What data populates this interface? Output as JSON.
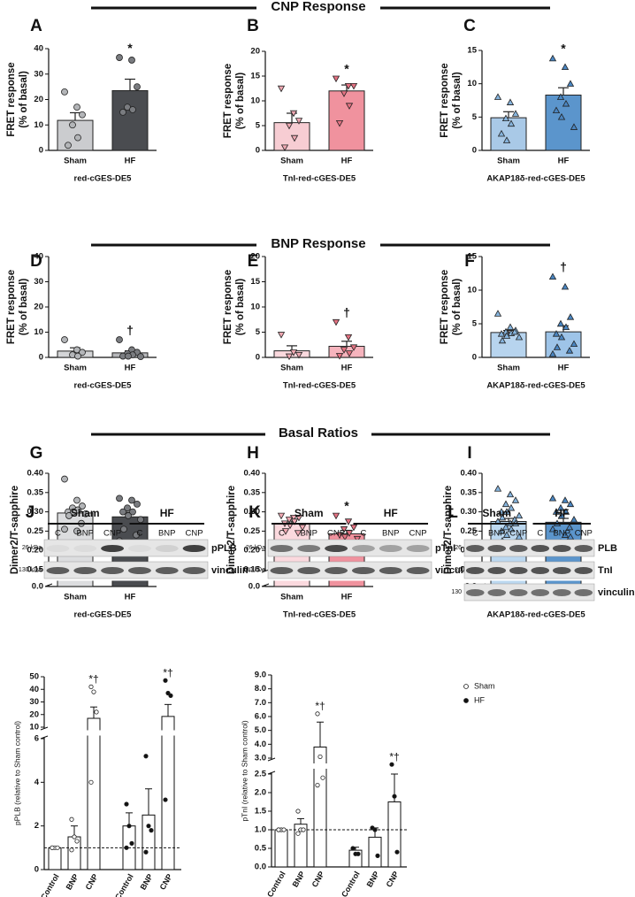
{
  "sections": [
    "CNP Response",
    "BNP Response",
    "Basal Ratios"
  ],
  "chart_data": [
    {
      "type": "bar",
      "panel": "A",
      "ylabel": [
        "FRET response",
        "(% of basal)"
      ],
      "xlabel": "red-cGES-DE5",
      "categories": [
        "Sham",
        "HF"
      ],
      "values": [
        11.8,
        23.5
      ],
      "errors": [
        3,
        4.5
      ],
      "points": [
        [
          23,
          17,
          14,
          10,
          5,
          2
        ],
        [
          36.5,
          35.5,
          25,
          17,
          16,
          15
        ]
      ],
      "annotations": [
        null,
        "*"
      ],
      "colors": [
        "#cbcccf",
        "#4a4c50"
      ],
      "point_colors": [
        "#b3b5b8",
        "#7a7c80"
      ],
      "marker": "circle",
      "ylim": [
        0,
        40
      ],
      "yticks": [
        0,
        10,
        20,
        30,
        40
      ]
    },
    {
      "type": "bar",
      "panel": "B",
      "ylabel": [
        "FRET response",
        "(% of basal)"
      ],
      "xlabel": "TnI-red-cGES-DE5",
      "categories": [
        "Sham",
        "HF"
      ],
      "values": [
        5.6,
        12.0
      ],
      "errors": [
        1.9,
        1.2
      ],
      "points": [
        [
          12.5,
          7.5,
          6,
          5,
          2.5,
          0.6
        ],
        [
          14.5,
          13,
          13,
          11.5,
          9,
          5.5
        ]
      ],
      "annotations": [
        null,
        "*"
      ],
      "colors": [
        "#f7cdd3",
        "#f0929e"
      ],
      "point_colors": [
        "#efa8b2",
        "#e47282"
      ],
      "marker": "triangle-down",
      "ylim": [
        0,
        20
      ],
      "yticks": [
        0,
        5,
        10,
        15,
        20
      ]
    },
    {
      "type": "bar",
      "panel": "C",
      "ylabel": [
        "FRET response",
        "(% of basal)"
      ],
      "xlabel": "AKAP18δ-red-cGES-DE5",
      "categories": [
        "Sham",
        "HF"
      ],
      "values": [
        4.9,
        8.3
      ],
      "errors": [
        0.9,
        1.1
      ],
      "points": [
        [
          8,
          7.2,
          5.5,
          4.8,
          4,
          2.5,
          1.5
        ],
        [
          13.8,
          12.5,
          10,
          8,
          7,
          6,
          5,
          3.5
        ]
      ],
      "annotations": [
        null,
        "*"
      ],
      "colors": [
        "#a9c9e7",
        "#5b95cc"
      ],
      "point_colors": [
        "#86b4dd",
        "#4a86c2"
      ],
      "marker": "triangle-up",
      "ylim": [
        0,
        15
      ],
      "yticks": [
        0,
        5,
        10,
        15
      ]
    },
    {
      "type": "bar",
      "panel": "D",
      "ylabel": [
        "FRET response",
        "(% of basal)"
      ],
      "xlabel": "red-cGES-DE5",
      "categories": [
        "Sham",
        "HF"
      ],
      "values": [
        2.5,
        1.8
      ],
      "errors": [
        1.3,
        0.8
      ],
      "points": [
        [
          7,
          3,
          2,
          1,
          0.5
        ],
        [
          7,
          3,
          2,
          1.5,
          1,
          0.5,
          0.5,
          0.3
        ]
      ],
      "annotations": [
        null,
        "†"
      ],
      "colors": [
        "#d4d5d7",
        "#b7b8bb"
      ],
      "point_colors": [
        "#b3b5b8",
        "#7a7c80"
      ],
      "marker": "circle",
      "ylim": [
        0,
        40
      ],
      "yticks": [
        0,
        10,
        20,
        30,
        40
      ]
    },
    {
      "type": "bar",
      "panel": "E",
      "ylabel": [
        "FRET response",
        "(% of basal)"
      ],
      "xlabel": "TnI-red-cGES-DE5",
      "categories": [
        "Sham",
        "HF"
      ],
      "values": [
        1.3,
        2.2
      ],
      "errors": [
        1,
        1
      ],
      "points": [
        [
          4.5,
          1,
          0.5,
          0.2
        ],
        [
          7,
          4,
          2,
          1.5,
          0.8,
          0.3
        ]
      ],
      "annotations": [
        null,
        "†"
      ],
      "colors": [
        "#fbd9de",
        "#f6b4bd"
      ],
      "point_colors": [
        "#efa8b2",
        "#e47282"
      ],
      "marker": "triangle-down",
      "ylim": [
        0,
        20
      ],
      "yticks": [
        0,
        5,
        10,
        15,
        20
      ]
    },
    {
      "type": "bar",
      "panel": "F",
      "ylabel": [
        "FRET response",
        "(% of basal)"
      ],
      "xlabel": "AKAP18δ-red-cGES-DE5",
      "categories": [
        "Sham",
        "HF"
      ],
      "values": [
        3.7,
        3.8
      ],
      "errors": [
        0.3,
        0.9
      ],
      "points": [
        [
          6.5,
          4.5,
          4,
          3.8,
          3.6,
          3.5,
          3.2,
          3,
          2.5,
          3.8
        ],
        [
          12,
          10.5,
          6,
          5,
          4.5,
          3.5,
          3,
          2,
          1.5,
          1,
          0.5
        ]
      ],
      "annotations": [
        null,
        "†"
      ],
      "colors": [
        "#b7d4ee",
        "#9ec4e8"
      ],
      "point_colors": [
        "#86b4dd",
        "#4a86c2"
      ],
      "marker": "triangle-up",
      "ylim": [
        0,
        15
      ],
      "yticks": [
        0,
        5,
        10,
        15
      ]
    },
    {
      "type": "bar",
      "panel": "G",
      "ylabel": "Dimer2/T-sapphire",
      "xlabel": "red-cGES-DE5",
      "categories": [
        "Sham",
        "HF"
      ],
      "values": [
        0.297,
        0.287
      ],
      "errors": [
        0.008,
        0.012
      ],
      "points": [
        [
          0.385,
          0.33,
          0.315,
          0.31,
          0.305,
          0.3,
          0.3,
          0.295,
          0.29,
          0.27,
          0.255,
          0.25
        ],
        [
          0.335,
          0.33,
          0.32,
          0.31,
          0.3,
          0.3,
          0.29,
          0.28,
          0.255,
          0.24,
          0.225,
          0.22
        ]
      ],
      "annotations": [
        null,
        null
      ],
      "colors": [
        "#dcdddf",
        "#4a4c50"
      ],
      "point_colors": [
        "#b3b5b8",
        "#7a7c80"
      ],
      "marker": "circle",
      "ylim": [
        0,
        0.4
      ],
      "ybreak": [
        0,
        0.15
      ],
      "yticks": [
        {
          "value": 0,
          "label": "0.0"
        },
        0.15,
        {
          "value": 0.2,
          "label": "0.20"
        },
        0.25,
        {
          "value": 0.3,
          "label": "0.30"
        },
        0.35,
        {
          "value": 0.4,
          "label": "0.40"
        }
      ]
    },
    {
      "type": "bar",
      "panel": "H",
      "ylabel": "Dimer2/T-sapphire",
      "xlabel": "TnI-red-cGES-DE5",
      "categories": [
        "Sham",
        "HF"
      ],
      "values": [
        0.27,
        0.243
      ],
      "errors": [
        0.006,
        0.009
      ],
      "points": [
        [
          0.29,
          0.285,
          0.285,
          0.28,
          0.275,
          0.27,
          0.265,
          0.26,
          0.25,
          0.245
        ],
        [
          0.29,
          0.275,
          0.26,
          0.255,
          0.245,
          0.24,
          0.235,
          0.23,
          0.22,
          0.215,
          0.2
        ]
      ],
      "annotations": [
        null,
        "*"
      ],
      "colors": [
        "#fbd9de",
        "#f0929e"
      ],
      "point_colors": [
        "#efa8b2",
        "#e47282"
      ],
      "marker": "triangle-down",
      "ylim": [
        0,
        0.4
      ],
      "ybreak": [
        0,
        0.15
      ],
      "yticks": [
        {
          "value": 0,
          "label": "0.0"
        },
        0.15,
        {
          "value": 0.2,
          "label": "0.20"
        },
        0.25,
        {
          "value": 0.3,
          "label": "0.30"
        },
        0.35,
        {
          "value": 0.4,
          "label": "0.40"
        }
      ]
    },
    {
      "type": "bar",
      "panel": "I",
      "ylabel": "Dimer2/T-sapphire",
      "xlabel": "AKAP18δ-red-cGES-DE5",
      "categories": [
        "Sham",
        "HF"
      ],
      "values": [
        0.275,
        0.273
      ],
      "errors": [
        0.008,
        0.01
      ],
      "points": [
        [
          0.36,
          0.345,
          0.33,
          0.32,
          0.31,
          0.3,
          0.3,
          0.29,
          0.285,
          0.28,
          0.275,
          0.27,
          0.27,
          0.26,
          0.255,
          0.25,
          0.24,
          0.235,
          0.225,
          0.22,
          0.2
        ],
        [
          0.335,
          0.33,
          0.32,
          0.31,
          0.3,
          0.3,
          0.29,
          0.28,
          0.27,
          0.26,
          0.255,
          0.24,
          0.235,
          0.22,
          0.21,
          0.2,
          0.2
        ]
      ],
      "annotations": [
        null,
        null
      ],
      "colors": [
        "#bcd8f0",
        "#5b95cc"
      ],
      "point_colors": [
        "#86b4dd",
        "#4a86c2"
      ],
      "marker": "triangle-up",
      "ylim": [
        0,
        0.4
      ],
      "ybreak": [
        0,
        0.15
      ],
      "yticks": [
        {
          "value": 0,
          "label": "0.0"
        },
        0.15,
        {
          "value": 0.2,
          "label": "0.20"
        },
        0.25,
        {
          "value": 0.3,
          "label": "0.30"
        },
        0.35,
        {
          "value": 0.4,
          "label": "0.40"
        }
      ]
    },
    {
      "type": "grouped_bar",
      "ylabel": "pPLB (relative to Sham control)",
      "categories": [
        "Control",
        "BNP",
        "CNP"
      ],
      "series": [
        {
          "color": "#ffffff",
          "point_fill": "#ffffff",
          "values": [
            1,
            1.5,
            17
          ],
          "errors": [
            0,
            0.5,
            9
          ],
          "points": [
            [
              1,
              1,
              1,
              1
            ],
            [
              2.3,
              1.5,
              1.3,
              0.9
            ],
            [
              42,
              38,
              22,
              4
            ]
          ],
          "annotations": [
            null,
            null,
            "*†"
          ]
        },
        {
          "color": "#ffffff",
          "point_fill": "#111111",
          "values": [
            2,
            2.5,
            18.5
          ],
          "errors": [
            0.6,
            1.2,
            9.5
          ],
          "points": [
            [
              3,
              2,
              1.2,
              1
            ],
            [
              5.2,
              2,
              1.8,
              0.8
            ],
            [
              47,
              37,
              35,
              3.2
            ]
          ],
          "annotations": [
            null,
            null,
            "*†"
          ]
        }
      ],
      "reference_line": 1,
      "ylim": [
        0,
        50
      ],
      "ybreak": [
        6,
        10
      ],
      "yticks": [
        0,
        2,
        4,
        6,
        10,
        20,
        30,
        40,
        50
      ],
      "legend": false
    },
    {
      "type": "grouped_bar",
      "ylabel": "pTnI (relative to Sham control)",
      "categories": [
        "Control",
        "BNP",
        "CNP"
      ],
      "series": [
        {
          "name": "Sham",
          "color": "#ffffff",
          "point_fill": "#ffffff",
          "values": [
            1,
            1.15,
            3.8
          ],
          "errors": [
            0,
            0.15,
            1.8
          ],
          "points": [
            [
              1,
              1,
              1,
              1
            ],
            [
              1.5,
              1,
              1,
              0.9
            ],
            [
              6.2,
              3.1,
              2.4,
              2.2
            ]
          ],
          "annotations": [
            null,
            null,
            "*†"
          ]
        },
        {
          "name": "HF",
          "color": "#ffffff",
          "point_fill": "#111111",
          "values": [
            0.45,
            0.8,
            1.75
          ],
          "errors": [
            0.08,
            0.25,
            0.75
          ],
          "points": [
            [
              0.5,
              0.35,
              0.35
            ],
            [
              1.05,
              1,
              0.3
            ],
            [
              2.8,
              1.9,
              0.4
            ]
          ],
          "annotations": [
            null,
            null,
            "*†"
          ]
        }
      ],
      "reference_line": 1,
      "ylim": [
        0,
        9
      ],
      "ybreak": [
        2.5,
        3
      ],
      "yticks": [
        {
          "value": 0,
          "label": "0.0"
        },
        0.5,
        {
          "value": 1,
          "label": "1.0"
        },
        1.5,
        {
          "value": 2,
          "label": "2.0"
        },
        2.5,
        {
          "value": 3,
          "label": "3.0"
        },
        {
          "value": 4,
          "label": "4.0"
        },
        {
          "value": 5,
          "label": "5.0"
        },
        {
          "value": 6,
          "label": "6.0"
        },
        {
          "value": 7,
          "label": "7.0"
        },
        {
          "value": 8,
          "label": "8.0"
        },
        {
          "value": 9,
          "label": "9.0"
        }
      ],
      "legend": true
    }
  ],
  "blots": [
    {
      "panel": "J",
      "groups": [
        "Sham",
        "HF"
      ],
      "lanes": [
        "C",
        "BNP",
        "CNP",
        "C",
        "BNP",
        "CNP"
      ],
      "rows": [
        {
          "marker": "26 kDa",
          "protein": "pPLB"
        },
        {
          "marker": "130 kDa",
          "protein": "vinculin"
        }
      ]
    },
    {
      "panel": "K",
      "groups": [
        "Sham",
        "HF"
      ],
      "lanes": [
        "C",
        "BNP",
        "CNP",
        "C",
        "BNP",
        "CNP"
      ],
      "rows": [
        {
          "marker": "26 kDa",
          "protein": "pTnI"
        },
        {
          "marker": "130 kDa",
          "protein": "vinculin"
        }
      ]
    },
    {
      "panel": "L",
      "groups": [
        "Sham",
        "HF"
      ],
      "lanes": [
        "C",
        "BNP",
        "CNP",
        "C",
        "BNP",
        "CNP"
      ],
      "rows": [
        {
          "marker": "26",
          "protein": "PLB"
        },
        {
          "marker": "26",
          "protein": "TnI"
        },
        {
          "marker": "130",
          "protein": "vinculin"
        }
      ]
    }
  ]
}
